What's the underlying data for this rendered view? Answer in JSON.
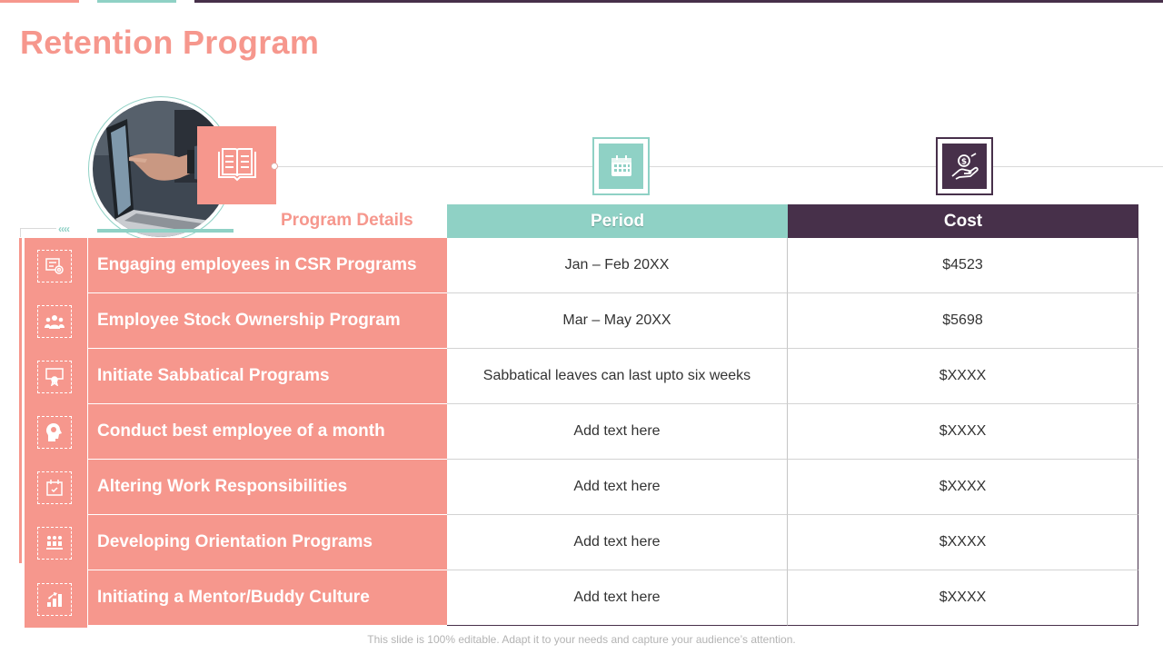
{
  "slide": {
    "title": "Retention Program",
    "footer": "This slide is 100% editable. Adapt it to your needs and capture your audience’s attention."
  },
  "colors": {
    "accent_salmon": "#f6978d",
    "accent_teal": "#8fd1c5",
    "accent_plum": "#47304a"
  },
  "icons": {
    "header_book": "book-icon",
    "header_period": "calendar-icon",
    "header_cost": "money-hand-icon"
  },
  "table": {
    "label_header": "Program Details",
    "period_header": "Period",
    "cost_header": "Cost",
    "rows": [
      {
        "icon": "presentation-icon",
        "program": "Engaging employees in CSR Programs",
        "period": "Jan – Feb 20XX",
        "cost": "$4523"
      },
      {
        "icon": "team-icon",
        "program": "Employee Stock Ownership Program",
        "period": "Mar – May 20XX",
        "cost": "$5698"
      },
      {
        "icon": "certificate-icon",
        "program": "Initiate Sabbatical Programs",
        "period": "Sabbatical leaves can last upto six weeks",
        "cost": "$XXXX"
      },
      {
        "icon": "head-idea-icon",
        "program": "Conduct best employee of a month",
        "period": "Add text here",
        "cost": "$XXXX"
      },
      {
        "icon": "calendar-check-icon",
        "program": "Altering Work Responsibilities",
        "period": "Add text here",
        "cost": "$XXXX"
      },
      {
        "icon": "orientation-icon",
        "program": "Developing Orientation Programs",
        "period": "Add text here",
        "cost": "$XXXX"
      },
      {
        "icon": "growth-icon",
        "program": "Initiating a Mentor/Buddy Culture",
        "period": "Add text here",
        "cost": "$XXXX"
      }
    ]
  }
}
